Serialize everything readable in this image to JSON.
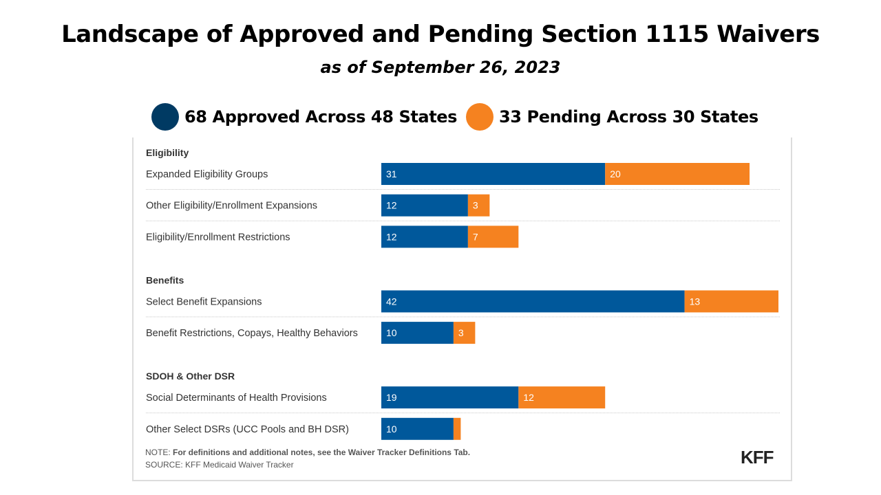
{
  "header": {
    "title": "Landscape of Approved and Pending Section 1115 Waivers",
    "subtitle": "as of September 26, 2023"
  },
  "legend": [
    {
      "label": "68 Approved Across 48 States",
      "color": "#003a63"
    },
    {
      "label": "33 Pending Across 30 States",
      "color": "#f58220"
    }
  ],
  "footer": {
    "note_prefix": "NOTE:",
    "note_text": "For definitions and additional notes, see the Waiver Tracker Definitions Tab.",
    "source": "SOURCE: KFF Medicaid Waiver Tracker",
    "logo": "KFF"
  },
  "chart_data": {
    "type": "bar",
    "orientation": "horizontal",
    "stacked": true,
    "title": "Landscape of Approved and Pending Section 1115 Waivers",
    "subtitle": "as of September 26, 2023",
    "xlabel": "",
    "ylabel": "",
    "xlim": [
      0,
      55
    ],
    "grid": false,
    "legend_position": "top",
    "colors": {
      "Approved": "#00589b",
      "Pending": "#f58220"
    },
    "groups": [
      {
        "name": "Eligibility",
        "categories": [
          "Expanded Eligibility Groups",
          "Other Eligibility/Enrollment Expansions",
          "Eligibility/Enrollment Restrictions"
        ],
        "series": [
          {
            "name": "Approved",
            "values": [
              31,
              12,
              12
            ]
          },
          {
            "name": "Pending",
            "values": [
              20,
              3,
              7
            ]
          }
        ]
      },
      {
        "name": "Benefits",
        "categories": [
          "Select Benefit Expansions",
          "Benefit Restrictions, Copays, Healthy Behaviors"
        ],
        "series": [
          {
            "name": "Approved",
            "values": [
              42,
              10
            ]
          },
          {
            "name": "Pending",
            "values": [
              13,
              3
            ]
          }
        ]
      },
      {
        "name": "SDOH & Other DSR",
        "categories": [
          "Social Determinants of Health Provisions",
          "Other Select DSRs (UCC Pools and BH DSR)"
        ],
        "series": [
          {
            "name": "Approved",
            "values": [
              19,
              10
            ]
          },
          {
            "name": "Pending",
            "values": [
              12,
              1
            ]
          }
        ],
        "unlabeled": [
          [
            1,
            1
          ]
        ]
      }
    ]
  }
}
